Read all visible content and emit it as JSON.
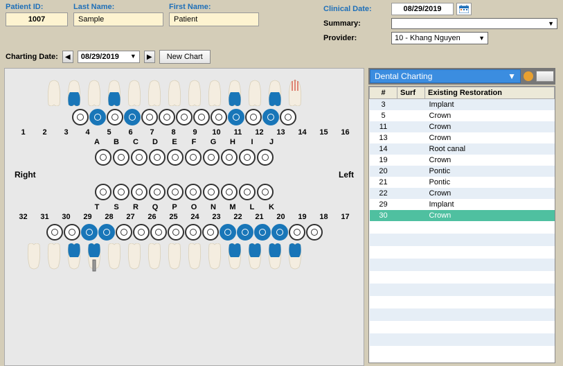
{
  "patient": {
    "id_label": "Patient ID:",
    "id_value": "1007",
    "last_label": "Last Name:",
    "last_value": "Sample",
    "first_label": "First Name:",
    "first_value": "Patient"
  },
  "clinical": {
    "date_label": "Clinical Date:",
    "date_value": "08/29/2019",
    "summary_label": "Summary:",
    "summary_value": "",
    "provider_label": "Provider:",
    "provider_value": "10 - Khang Nguyen"
  },
  "charting": {
    "label": "Charting Date:",
    "date": "08/29/2019",
    "new_chart": "New Chart"
  },
  "upper_numbers": [
    "1",
    "2",
    "3",
    "4",
    "5",
    "6",
    "7",
    "8",
    "9",
    "10",
    "11",
    "12",
    "13",
    "14",
    "15",
    "16"
  ],
  "upper_filled": [
    3,
    5,
    11,
    13
  ],
  "upper_letters": [
    "A",
    "B",
    "C",
    "D",
    "E",
    "F",
    "G",
    "H",
    "I",
    "J"
  ],
  "lower_letters": [
    "T",
    "S",
    "R",
    "Q",
    "P",
    "O",
    "N",
    "M",
    "L",
    "K"
  ],
  "lower_numbers": [
    "32",
    "31",
    "30",
    "29",
    "28",
    "27",
    "26",
    "25",
    "24",
    "23",
    "22",
    "21",
    "20",
    "19",
    "18",
    "17"
  ],
  "lower_filled": [
    30,
    29,
    22,
    21,
    20,
    19
  ],
  "right_label": "Right",
  "left_label": "Left",
  "restorations": {
    "panel_title": "Dental Charting",
    "col_num": "#",
    "col_surf": "Surf",
    "col_exist": "Existing Restoration",
    "rows": [
      {
        "num": "3",
        "surf": "",
        "r": "Implant"
      },
      {
        "num": "5",
        "surf": "",
        "r": "Crown"
      },
      {
        "num": "11",
        "surf": "",
        "r": "Crown"
      },
      {
        "num": "13",
        "surf": "",
        "r": "Crown"
      },
      {
        "num": "14",
        "surf": "",
        "r": "Root canal"
      },
      {
        "num": "19",
        "surf": "",
        "r": "Crown"
      },
      {
        "num": "20",
        "surf": "",
        "r": "Pontic"
      },
      {
        "num": "21",
        "surf": "",
        "r": "Pontic"
      },
      {
        "num": "22",
        "surf": "",
        "r": "Crown"
      },
      {
        "num": "29",
        "surf": "",
        "r": "Implant"
      },
      {
        "num": "30",
        "surf": "",
        "r": "Crown",
        "selected": true
      }
    ]
  },
  "colors": {
    "crown": "#1976b8",
    "tooth": "#f4ede0",
    "tooth_shade": "#d8cfb8"
  }
}
